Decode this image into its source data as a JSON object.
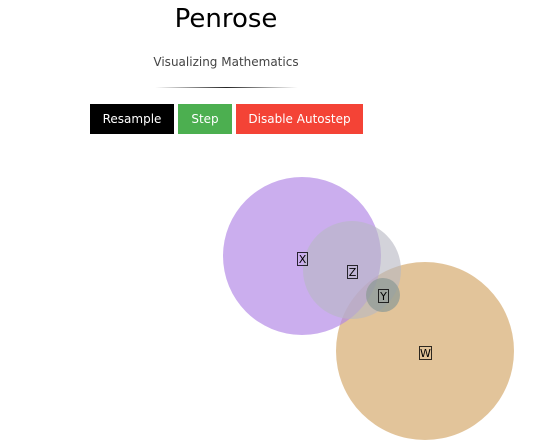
{
  "header": {
    "title": "Penrose",
    "subtitle": "Visualizing Mathematics"
  },
  "controls": {
    "resample_label": "Resample",
    "step_label": "Step",
    "autostep_label": "Disable Autostep"
  },
  "colors": {
    "resample_bg": "#000000",
    "step_bg": "#4caf50",
    "autostep_bg": "#f44336",
    "circle_x": "#b388e6",
    "circle_z": "#b8b8c4",
    "circle_y": "#8e9a96",
    "circle_w": "#d4a86a"
  },
  "diagram": {
    "sets": [
      {
        "label": "X"
      },
      {
        "label": "Z"
      },
      {
        "label": "Y"
      },
      {
        "label": "W"
      }
    ]
  }
}
